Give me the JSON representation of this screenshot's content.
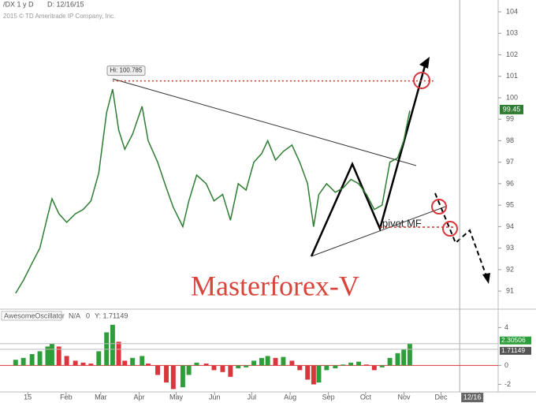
{
  "header": {
    "symbol": "/DX 1 y D",
    "date": "D: 12/16/15",
    "copyright": "2015 © TD Ameritrade IP Company, Inc.",
    "brand": "Masterforex-V",
    "pivot": "pivot MF"
  },
  "chart_data": [
    {
      "type": "line",
      "name": "/DX",
      "color": "#2e7d32",
      "x": [
        -1.4,
        -0.5,
        0.5,
        1.4,
        2.3,
        2.8,
        3.6,
        4.5,
        5.5,
        6.4,
        7.3,
        8.2,
        9.1,
        9.8,
        10.5,
        11.2,
        12.1,
        13.2,
        13.9,
        15,
        16,
        16.8,
        17.9,
        18.6,
        19.5,
        20.6,
        21.5,
        22.5,
        23.4,
        24.3,
        25.2,
        26.1,
        27,
        27.7,
        28.6,
        29.5,
        30.5,
        31.4,
        32.3,
        33,
        33.6,
        34.5,
        35.5,
        36.4,
        37.3,
        38.2,
        39.1,
        40,
        40.9,
        41.8,
        42.7,
        43.4,
        44.1
      ],
      "values": [
        90.9,
        91.5,
        92.3,
        93.0,
        94.5,
        95.3,
        94.6,
        94.2,
        94.6,
        94.8,
        95.2,
        96.5,
        99.3,
        100.4,
        98.5,
        97.6,
        98.3,
        99.6,
        98.0,
        97.0,
        95.8,
        94.9,
        94.0,
        95.2,
        96.4,
        96.0,
        95.2,
        95.5,
        94.3,
        96.0,
        95.7,
        97.0,
        97.4,
        98.0,
        97.1,
        97.5,
        97.8,
        97.0,
        96.0,
        94.0,
        95.5,
        96.0,
        95.6,
        95.8,
        96.2,
        96.0,
        95.5,
        94.8,
        95.0,
        97.0,
        97.2,
        98.0,
        99.4
      ],
      "high": {
        "value": 100.785,
        "label": "Hi: 100.785"
      },
      "last": 99.45,
      "xlim": [
        -3.2,
        54.3
      ],
      "ylim": [
        90.16,
        104.55
      ],
      "yticks": [
        91,
        92,
        93,
        94,
        95,
        96,
        97,
        98,
        99,
        100,
        101,
        102,
        103,
        104
      ],
      "xticks": [
        {
          "value": 0,
          "label": "15"
        },
        {
          "value": 4.43,
          "label": "Feb"
        },
        {
          "value": 8.43,
          "label": "Mar"
        },
        {
          "value": 12.86,
          "label": "Apr"
        },
        {
          "value": 17.14,
          "label": "May"
        },
        {
          "value": 21.57,
          "label": "Jun"
        },
        {
          "value": 25.86,
          "label": "Jul"
        },
        {
          "value": 30.29,
          "label": "Aug"
        },
        {
          "value": 34.71,
          "label": "Sep"
        },
        {
          "value": 39,
          "label": "Oct"
        },
        {
          "value": 43.43,
          "label": "Nov"
        },
        {
          "value": 47.71,
          "label": "Dec"
        },
        {
          "value": 52.14,
          "label": "16"
        }
      ],
      "cursor": {
        "value": 49.86,
        "label": "12/16"
      }
    },
    {
      "type": "bar",
      "name": "AwesomeOscillator",
      "status": "N/A",
      "param": "0",
      "readout": "Y: 1.71149",
      "up_color": "#2e9e3a",
      "down_color": "#d9363e",
      "x": [
        -1.4,
        -0.5,
        0.5,
        1.4,
        2.3,
        2.8,
        3.6,
        4.5,
        5.5,
        6.4,
        7.3,
        8.2,
        9.1,
        9.8,
        10.5,
        11.2,
        12.1,
        13.2,
        13.9,
        15,
        16,
        16.8,
        17.9,
        18.6,
        19.5,
        20.6,
        21.5,
        22.5,
        23.4,
        24.3,
        25.2,
        26.1,
        27,
        27.7,
        28.6,
        29.5,
        30.5,
        31.4,
        32.3,
        33,
        33.6,
        34.5,
        35.5,
        36.4,
        37.3,
        38.2,
        39.1,
        40,
        40.9,
        41.8,
        42.7,
        43.4,
        44.1
      ],
      "values": [
        0.6,
        0.8,
        1.2,
        1.5,
        2.0,
        2.3,
        2.0,
        1.0,
        0.5,
        0.3,
        0.2,
        1.5,
        3.5,
        4.3,
        2.5,
        0.5,
        0.8,
        1.0,
        0.2,
        -1.0,
        -1.8,
        -2.5,
        -2.3,
        -1.0,
        0.3,
        0.2,
        -0.5,
        -0.7,
        -1.2,
        -0.3,
        -0.2,
        0.5,
        0.8,
        1.0,
        0.8,
        0.9,
        0.5,
        -0.5,
        -1.5,
        -2.0,
        -1.8,
        -0.5,
        -0.3,
        0.1,
        0.3,
        0.4,
        0.1,
        -0.5,
        -0.2,
        0.8,
        1.3,
        1.7,
        2.3
      ],
      "tags": [
        2.30506,
        1.71149
      ],
      "xlim": [
        -3.2,
        54.3
      ],
      "ylim": [
        -2.8,
        4.7
      ],
      "yticks": [
        4,
        0,
        -2
      ]
    }
  ]
}
